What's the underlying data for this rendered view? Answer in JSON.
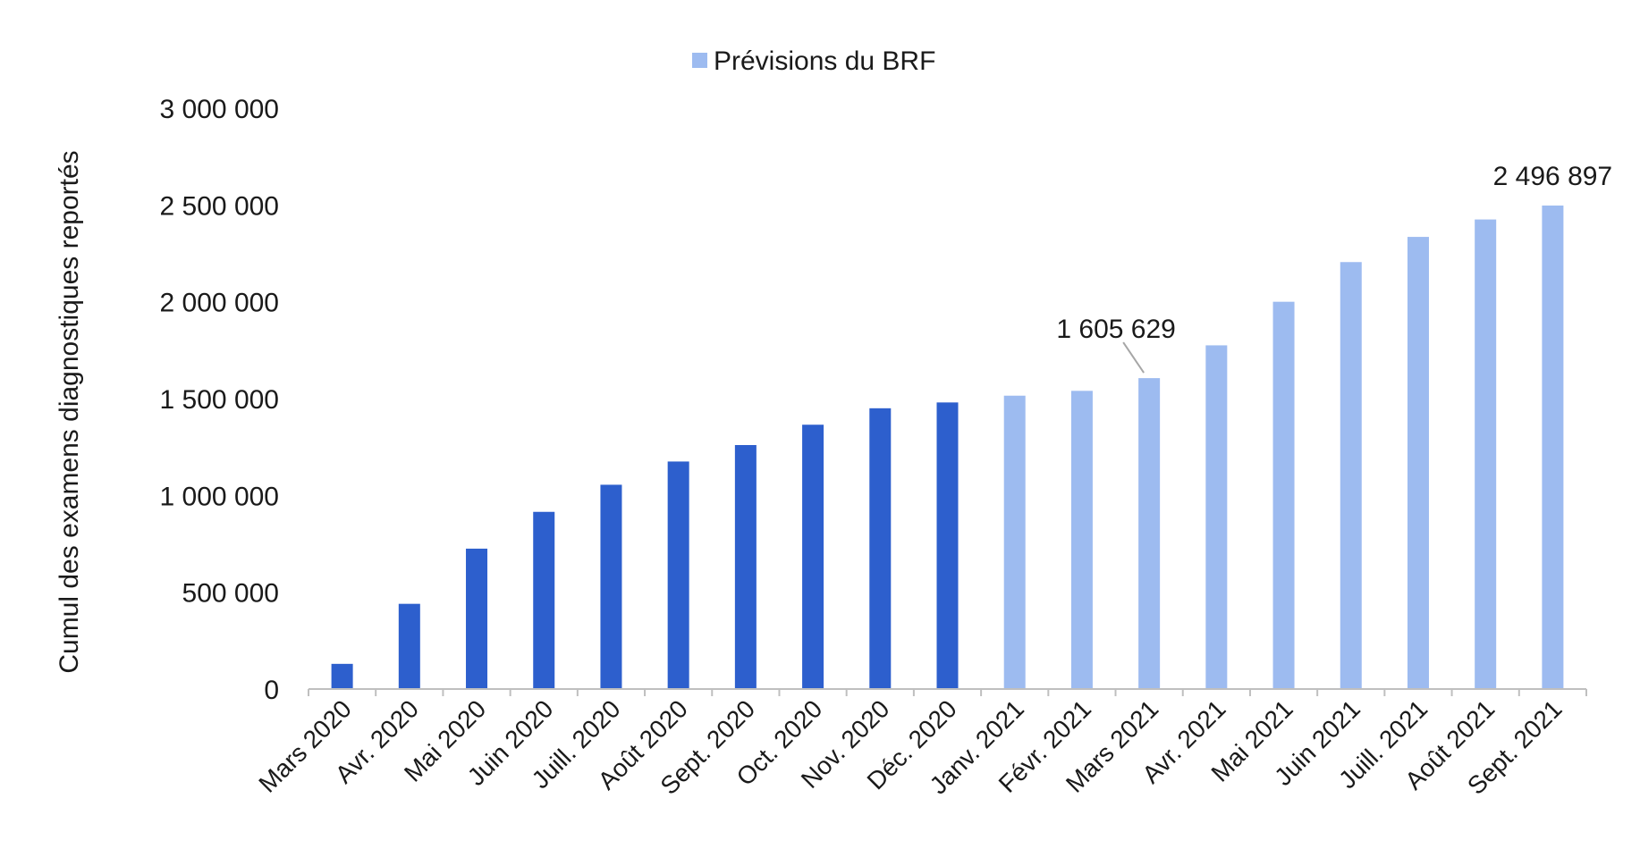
{
  "chart_data": {
    "type": "bar",
    "title": "",
    "xlabel": "",
    "ylabel": "Cumul des examens diagnostiques reportés",
    "ylim": [
      0,
      3000000
    ],
    "yticks": [
      0,
      500000,
      1000000,
      1500000,
      2000000,
      2500000,
      3000000
    ],
    "ytick_labels": [
      "0",
      "500 000",
      "1 000 000",
      "1 500 000",
      "2 000 000",
      "2 500 000",
      "3 000 000"
    ],
    "grid": false,
    "legend_position": "top-center",
    "categories": [
      "Mars 2020",
      "Avr. 2020",
      "Mai 2020",
      "Juin 2020",
      "Juill. 2020",
      "Août 2020",
      "Sept. 2020",
      "Oct. 2020",
      "Nov. 2020",
      "Déc. 2020",
      "Janv. 2021",
      "Févr. 2021",
      "Mars 2021",
      "Avr. 2021",
      "Mai 2021",
      "Juin 2021",
      "Juill. 2021",
      "Août 2021",
      "Sept. 2021"
    ],
    "values": [
      130000,
      440000,
      725000,
      915000,
      1055000,
      1175000,
      1260000,
      1365000,
      1450000,
      1480000,
      1515000,
      1540000,
      1605629,
      1775000,
      2000000,
      2205000,
      2335000,
      2425000,
      2496897
    ],
    "series_index": [
      0,
      0,
      0,
      0,
      0,
      0,
      0,
      0,
      0,
      0,
      1,
      1,
      1,
      1,
      1,
      1,
      1,
      1,
      1
    ],
    "series": [
      {
        "name": "",
        "color": "#2d5fcd"
      },
      {
        "name": "Prévisions du BRF",
        "color": "#9dbbf0"
      }
    ],
    "annotations": [
      {
        "category_index": 12,
        "text": "1 605 629",
        "leader": true
      },
      {
        "category_index": 18,
        "text": "2 496 897",
        "leader": false
      }
    ]
  }
}
